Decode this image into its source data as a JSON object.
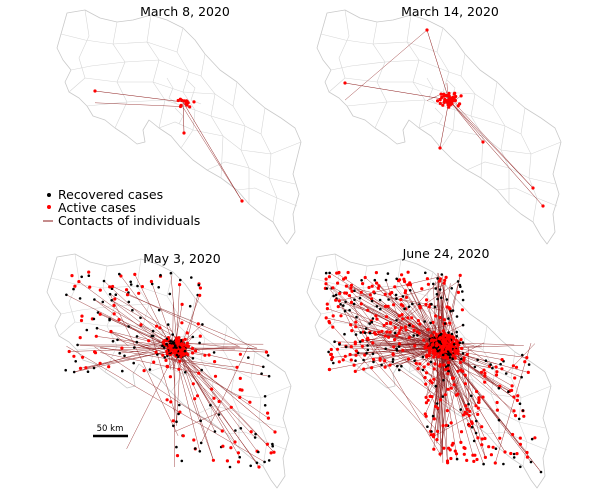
{
  "panels": [
    {
      "title": "March 8, 2020"
    },
    {
      "title": "March 14, 2020"
    },
    {
      "title": "May 3, 2020"
    },
    {
      "title": "June 24, 2020"
    }
  ],
  "legend": {
    "recovered": "Recovered cases",
    "active": "Active cases",
    "contacts": "Contacts of individuals"
  },
  "scale_bar": {
    "label": "50 km"
  },
  "colors": {
    "recovered": "#000000",
    "active": "#ff0000",
    "contacts": "#8b1a1a",
    "borders": "#c9c9c9"
  }
}
